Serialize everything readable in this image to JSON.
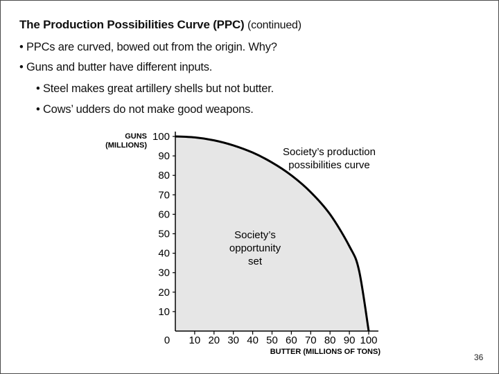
{
  "slide": {
    "title_main": "The Production Possibilities Curve (PPC)",
    "title_suffix": "(continued)",
    "bullets": [
      "• PPCs are curved, bowed out from the origin. Why?",
      "• Guns and butter have different inputs.",
      "• Steel makes great artillery shells but not butter.",
      "• Cows’ udders do not make good weapons."
    ],
    "slide_number": "36"
  },
  "chart_data": {
    "type": "area",
    "ylabel_lines": [
      "GUNS",
      "(MILLIONS)"
    ],
    "xlabel": "BUTTER (MILLIONS  OF TONS)",
    "origin_label": "0",
    "x_ticks": [
      10,
      20,
      30,
      40,
      50,
      60,
      70,
      80,
      90,
      100
    ],
    "y_ticks": [
      10,
      20,
      30,
      40,
      50,
      60,
      70,
      80,
      90,
      100
    ],
    "xlim": [
      0,
      100
    ],
    "ylim": [
      0,
      100
    ],
    "grid": false,
    "curve_label_lines": [
      "Society’s production",
      "possibilities curve"
    ],
    "area_label_lines": [
      "Society’s",
      "opportunity",
      "set"
    ],
    "area_fill": "#e6e6e6",
    "curve_color": "#000000",
    "series": [
      {
        "x": [
          0,
          10,
          20,
          30,
          40,
          50,
          60,
          70,
          80,
          90,
          95,
          100
        ],
        "y": [
          100,
          99.5,
          98,
          95.4,
          91.7,
          86.6,
          80,
          71.4,
          60,
          43.6,
          31.2,
          0
        ]
      }
    ]
  }
}
